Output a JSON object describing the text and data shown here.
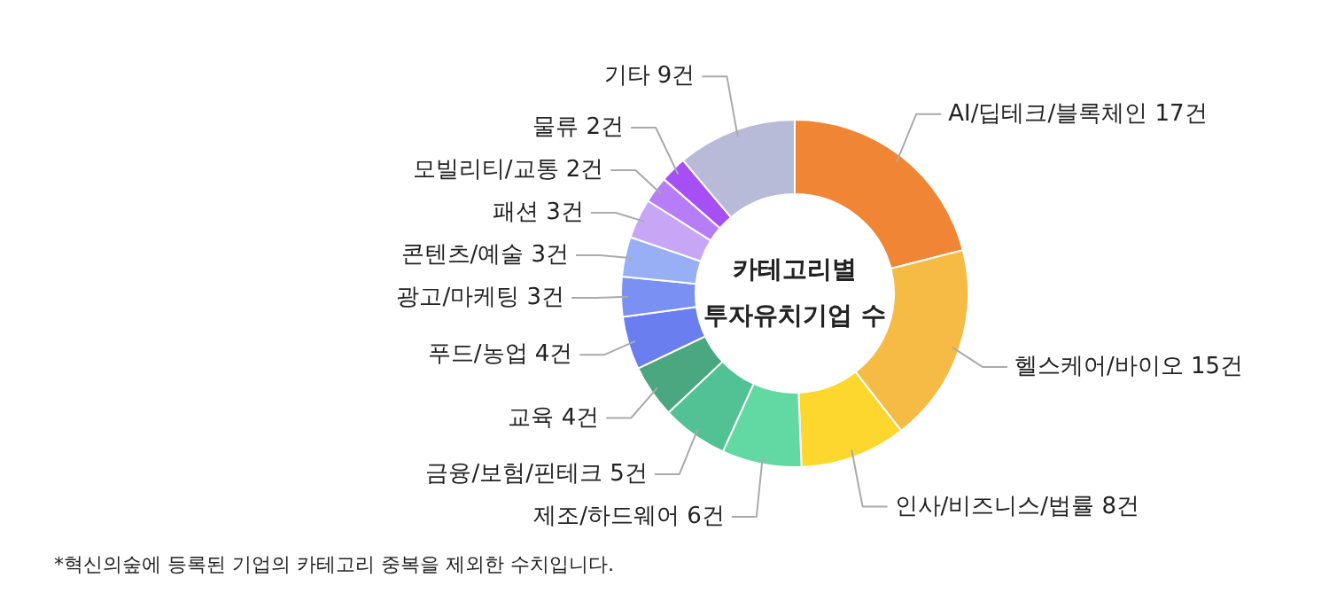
{
  "chart_data": {
    "type": "donut",
    "title": "카테고리별\n투자유치기업 수",
    "categories": [
      "AI/딥테크/블록체인",
      "헬스케어/바이오",
      "인사/비즈니스/법률",
      "제조/하드웨어",
      "금융/보험/핀테크",
      "교육",
      "푸드/농업",
      "광고/마케팅",
      "콘텐츠/예술",
      "패션",
      "모빌리티/교통",
      "물류",
      "기타"
    ],
    "values": [
      17,
      15,
      8,
      6,
      5,
      4,
      4,
      3,
      3,
      3,
      2,
      2,
      9
    ],
    "value_labels": [
      "17건",
      "15건",
      "8건",
      "6건",
      "5건",
      "4건",
      "4건",
      "3건",
      "3건",
      "3건",
      "2건",
      "2건",
      "9건"
    ],
    "colors": [
      "#f08536",
      "#f6bb45",
      "#fdd72e",
      "#62d8a2",
      "#52c295",
      "#4aa77f",
      "#6a7ef0",
      "#7a90f2",
      "#98aef5",
      "#c8a6f6",
      "#b77df7",
      "#a54ff5",
      "#b8bbd8"
    ],
    "annotations": [
      "*혁신의숲에 등록된 기업의 카테고리 중복을 제외한 수치입니다."
    ]
  }
}
